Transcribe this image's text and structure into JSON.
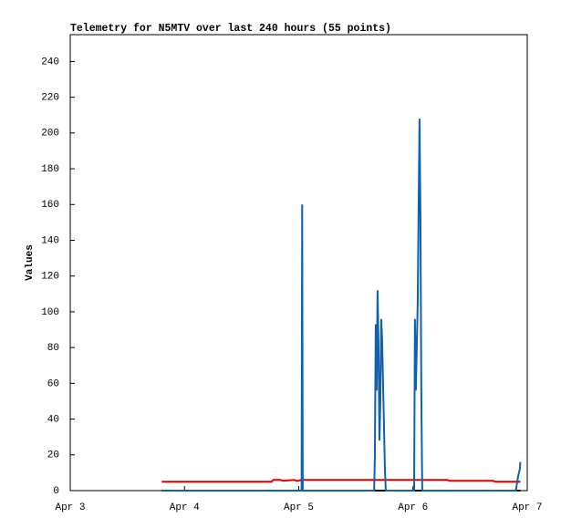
{
  "chart_data": {
    "type": "line",
    "title": "Telemetry for N5MTV over last 240 hours (55 points)",
    "y_label": "Values",
    "xlim": [
      0,
      4
    ],
    "xticks": [
      {
        "value": 0,
        "label": "Apr 3"
      },
      {
        "value": 1,
        "label": "Apr 4"
      },
      {
        "value": 2,
        "label": "Apr 5"
      },
      {
        "value": 3,
        "label": "Apr 6"
      },
      {
        "value": 4,
        "label": "Apr 7"
      }
    ],
    "ylim": [
      0,
      255
    ],
    "yticks": [
      0,
      20,
      40,
      60,
      80,
      100,
      120,
      140,
      160,
      180,
      200,
      220,
      240
    ],
    "series": [
      {
        "color": "#000000",
        "x": [
          0.8,
          3.94
        ],
        "values": [
          0,
          0
        ]
      },
      {
        "color": "#e00000",
        "x": [
          0.8,
          1.76,
          1.78,
          1.84,
          1.86,
          1.96,
          1.98,
          2.0,
          2.02,
          2.5,
          3.0,
          3.3,
          3.32,
          3.7,
          3.72,
          3.94
        ],
        "values": [
          5,
          5,
          6,
          6,
          5.5,
          6,
          5.5,
          5.5,
          6,
          6,
          6,
          6,
          5.5,
          5.5,
          5,
          5
        ]
      },
      {
        "color": "#1060b0",
        "x": [
          0.8,
          2.025,
          2.03,
          2.035,
          2.66,
          2.666,
          2.674,
          2.682,
          2.69,
          2.698,
          2.706,
          2.714,
          2.722,
          2.73,
          2.738,
          2.746,
          2.754,
          2.762,
          3.01,
          3.017,
          3.025,
          3.041,
          3.057,
          3.065,
          3.073,
          3.081,
          3.9,
          3.92,
          3.935,
          3.94
        ],
        "values": [
          0,
          0,
          160,
          0,
          0,
          18,
          93,
          56,
          112,
          84,
          28,
          49,
          96,
          84,
          60,
          36,
          12,
          0,
          0,
          96,
          56,
          104,
          208,
          156,
          52,
          0,
          0,
          8,
          12,
          16
        ]
      }
    ]
  }
}
